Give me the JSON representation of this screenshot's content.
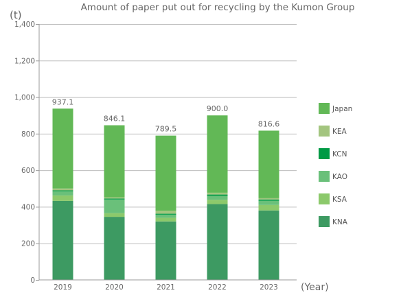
{
  "chart_data": {
    "type": "bar",
    "stacked": true,
    "title": "Amount of paper put out for recycling by the Kumon Group",
    "ylabel": "(t)",
    "xlabel": "(Year)",
    "ylim": [
      0,
      1400
    ],
    "yticks": [
      0,
      200,
      400,
      600,
      800,
      1000,
      1200,
      1400
    ],
    "ytick_labels": [
      "0",
      "200",
      "400",
      "600",
      "800",
      "1,000",
      "1,200",
      "1,400"
    ],
    "grid": true,
    "legend_position": "right",
    "categories": [
      "2019",
      "2020",
      "2021",
      "2022",
      "2023"
    ],
    "totals": [
      937.1,
      846.1,
      789.5,
      900.0,
      816.6
    ],
    "total_labels": [
      "937.1",
      "846.1",
      "789.5",
      "900.0",
      "816.6"
    ],
    "series": [
      {
        "name": "KNA",
        "color": "#3d9a62",
        "values": [
          432,
          345,
          320,
          415,
          380
        ]
      },
      {
        "name": "KSA",
        "color": "#8cc96b",
        "values": [
          30,
          20,
          20,
          23,
          30
        ]
      },
      {
        "name": "KAO",
        "color": "#6ac07a",
        "values": [
          23,
          75,
          17,
          22,
          23
        ]
      },
      {
        "name": "KCN",
        "color": "#009a44",
        "values": [
          5,
          5,
          5,
          7,
          7
        ]
      },
      {
        "name": "KEA",
        "color": "#a3c57f",
        "values": [
          10,
          7,
          16,
          10,
          7
        ]
      },
      {
        "name": "Japan",
        "color": "#62b856",
        "values": [
          437.1,
          394.1,
          411.5,
          423.0,
          369.6
        ]
      }
    ],
    "legend_order": [
      "Japan",
      "KEA",
      "KCN",
      "KAO",
      "KSA",
      "KNA"
    ]
  }
}
